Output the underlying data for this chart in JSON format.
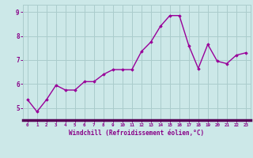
{
  "x": [
    0,
    1,
    2,
    3,
    4,
    5,
    6,
    7,
    8,
    9,
    10,
    11,
    12,
    13,
    14,
    15,
    16,
    17,
    18,
    19,
    20,
    21,
    22,
    23
  ],
  "y": [
    5.35,
    4.85,
    5.35,
    5.95,
    5.75,
    5.75,
    6.1,
    6.1,
    6.4,
    6.6,
    6.6,
    6.6,
    7.35,
    7.75,
    8.4,
    8.85,
    8.85,
    7.6,
    6.65,
    7.65,
    6.95,
    6.85,
    7.2,
    7.3
  ],
  "line_color": "#990099",
  "marker": "D",
  "marker_size": 1.8,
  "linewidth": 1.0,
  "background_color": "#cce8e8",
  "grid_color": "#aacccc",
  "xlabel": "Windchill (Refroidissement éolien,°C)",
  "xlabel_color": "#880088",
  "ylabel_ticks": [
    5,
    6,
    7,
    8,
    9
  ],
  "xlim": [
    -0.5,
    23.5
  ],
  "ylim": [
    4.5,
    9.3
  ],
  "tick_color": "#880088",
  "spine_color": "#880088",
  "spine_bottom_color": "#550055"
}
